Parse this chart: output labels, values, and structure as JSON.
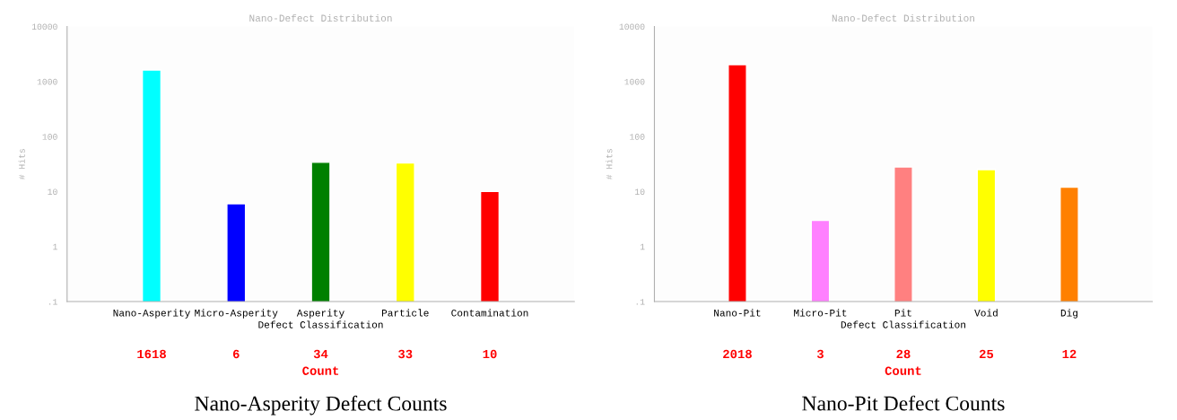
{
  "chart_data": [
    {
      "type": "bar",
      "title": "Nano-Defect Distribution",
      "xlabel": "Defect Classification",
      "ylabel": "# Hits",
      "categories": [
        "Nano-Asperity",
        "Micro-Asperity",
        "Asperity",
        "Particle",
        "Contamination"
      ],
      "values": [
        1618,
        6,
        34,
        33,
        10
      ],
      "colors": [
        "#00ffff",
        "#0000ff",
        "#008000",
        "#ffff00",
        "#ff0000"
      ],
      "log": "y",
      "ylim": [
        0.1,
        10000
      ],
      "yticks": [
        {
          "value": 0.1,
          "label": ".1"
        },
        1,
        10,
        100,
        1000,
        10000
      ],
      "data_labels": true,
      "grid": false,
      "legend": false,
      "annotations": [
        "Count",
        "Nano-Asperity Defect Counts"
      ]
    },
    {
      "type": "bar",
      "title": "Nano-Defect Distribution",
      "xlabel": "Defect Classification",
      "ylabel": "# Hits",
      "categories": [
        "Nano-Pit",
        "Micro-Pit",
        "Pit",
        "Void",
        "Dig"
      ],
      "values": [
        2018,
        3,
        28,
        25,
        12
      ],
      "colors": [
        "#ff0000",
        "#ff80ff",
        "#ff8080",
        "#ffff00",
        "#ff8000"
      ],
      "log": "y",
      "ylim": [
        0.1,
        10000
      ],
      "yticks": [
        {
          "value": 0.1,
          "label": ".1"
        },
        1,
        10,
        100,
        1000,
        10000
      ],
      "data_labels": true,
      "grid": false,
      "legend": false,
      "annotations": [
        "Count",
        "Nano-Pit Defect Counts"
      ]
    }
  ]
}
